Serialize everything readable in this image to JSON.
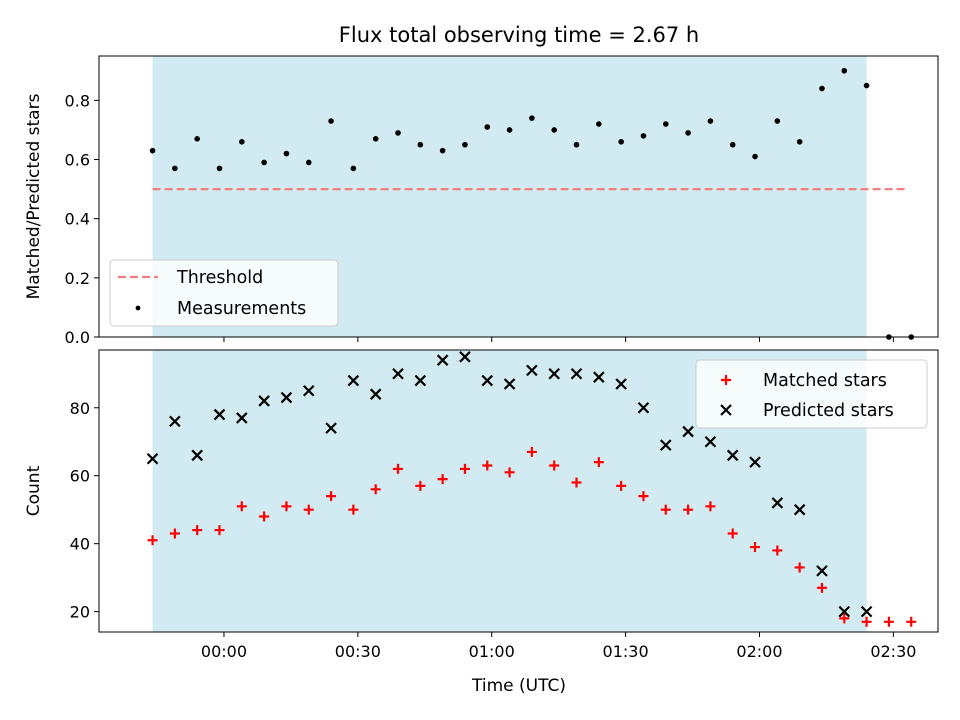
{
  "chart_data": {
    "title": "Flux total observing time = 2.67 h",
    "xlabel": "Time (UTC)",
    "x_tick_labels": [
      "00:00",
      "00:30",
      "01:00",
      "01:30",
      "02:00",
      "02:30"
    ],
    "shaded_span": {
      "color": "#add8e6",
      "x_start_label": "23:44",
      "x_end_label": "02:24"
    },
    "x_times": [
      "23:44",
      "23:49",
      "23:54",
      "23:59",
      "00:04",
      "00:09",
      "00:14",
      "00:19",
      "00:24",
      "00:29",
      "00:34",
      "00:39",
      "00:44",
      "00:49",
      "00:54",
      "00:59",
      "01:04",
      "01:09",
      "01:14",
      "01:19",
      "01:24",
      "01:29",
      "01:34",
      "01:39",
      "01:44",
      "01:49",
      "01:54",
      "01:59",
      "02:04",
      "02:09",
      "02:14",
      "02:19",
      "02:24",
      "02:29",
      "02:34"
    ],
    "panels": [
      {
        "type": "scatter",
        "ylabel": "Matched/Predicted stars",
        "ylim": [
          0,
          0.95
        ],
        "y_ticks": [
          0.0,
          0.2,
          0.4,
          0.6,
          0.8
        ],
        "y_tick_labels": [
          "0.0",
          "0.2",
          "0.4",
          "0.6",
          "0.8"
        ],
        "legend_position": "lower-left",
        "threshold": {
          "name": "Threshold",
          "value": 0.5,
          "color": "#f08080",
          "x_start": "23:44",
          "x_end": "02:33"
        },
        "series": [
          {
            "name": "Measurements",
            "color": "#000000",
            "marker": "dot",
            "values": [
              0.63,
              0.57,
              0.67,
              0.57,
              0.66,
              0.59,
              0.62,
              0.59,
              0.73,
              0.57,
              0.67,
              0.69,
              0.65,
              0.63,
              0.65,
              0.71,
              0.7,
              0.74,
              0.7,
              0.65,
              0.72,
              0.66,
              0.68,
              0.72,
              0.69,
              0.73,
              0.65,
              0.61,
              0.73,
              0.66,
              0.84,
              0.9,
              0.85,
              0.0,
              0.0
            ]
          }
        ]
      },
      {
        "type": "scatter",
        "ylabel": "Count",
        "ylim": [
          14,
          97
        ],
        "y_ticks": [
          20,
          40,
          60,
          80
        ],
        "y_tick_labels": [
          "20",
          "40",
          "60",
          "80"
        ],
        "legend_position": "top-right",
        "series": [
          {
            "name": "Matched stars",
            "color": "#ff0000",
            "marker": "plus",
            "values": [
              41,
              43,
              44,
              44,
              51,
              48,
              51,
              50,
              54,
              50,
              56,
              62,
              57,
              59,
              62,
              63,
              61,
              67,
              63,
              58,
              64,
              57,
              54,
              50,
              50,
              51,
              43,
              39,
              38,
              33,
              27,
              18,
              17,
              17,
              17
            ]
          },
          {
            "name": "Predicted stars",
            "color": "#000000",
            "marker": "x",
            "values": [
              65,
              76,
              66,
              78,
              77,
              82,
              83,
              85,
              74,
              88,
              84,
              90,
              88,
              94,
              95,
              88,
              87,
              91,
              90,
              90,
              89,
              87,
              80,
              69,
              73,
              70,
              66,
              64,
              52,
              50,
              32,
              20,
              20,
              null,
              null
            ]
          }
        ]
      }
    ]
  }
}
